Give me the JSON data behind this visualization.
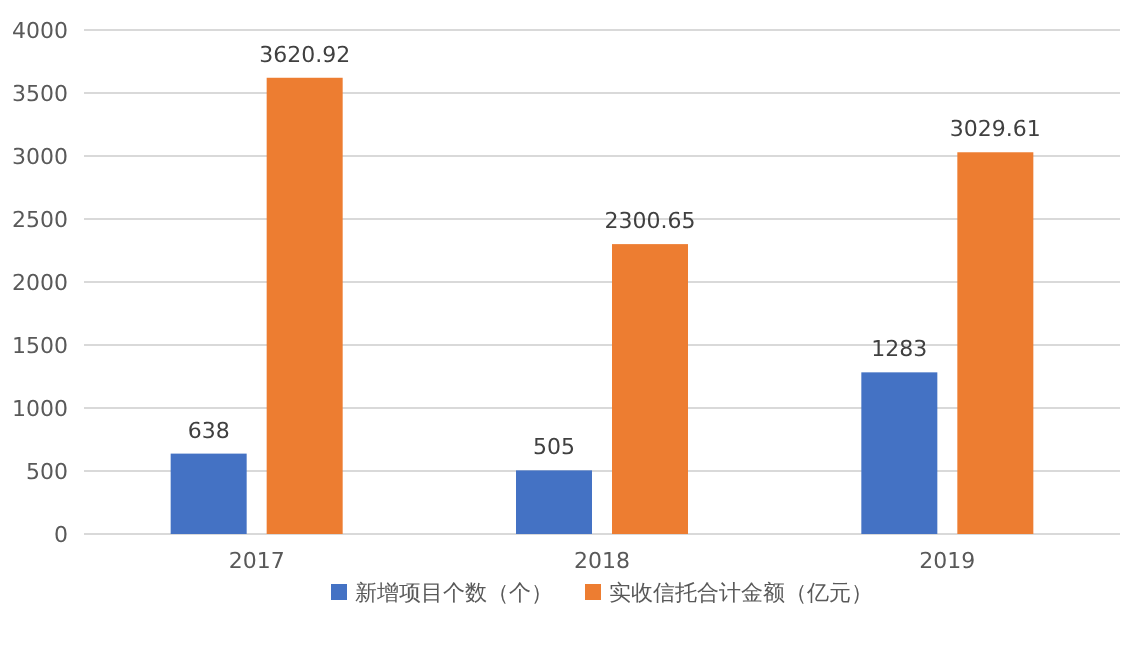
{
  "chart_data": {
    "type": "bar",
    "categories": [
      "2017",
      "2018",
      "2019"
    ],
    "series": [
      {
        "name": "新增项目个数（个）",
        "color": "#4472c4",
        "values": [
          638,
          505,
          1283
        ]
      },
      {
        "name": "实收信托合计金额（亿元）",
        "color": "#ed7d31",
        "values": [
          3620.92,
          2300.65,
          3029.61
        ]
      }
    ],
    "ylim": [
      0,
      4000
    ],
    "yticks": [
      0,
      500,
      1000,
      1500,
      2000,
      2500,
      3000,
      3500,
      4000
    ],
    "grid": "y",
    "legend": "bottom",
    "data_labels": true
  }
}
